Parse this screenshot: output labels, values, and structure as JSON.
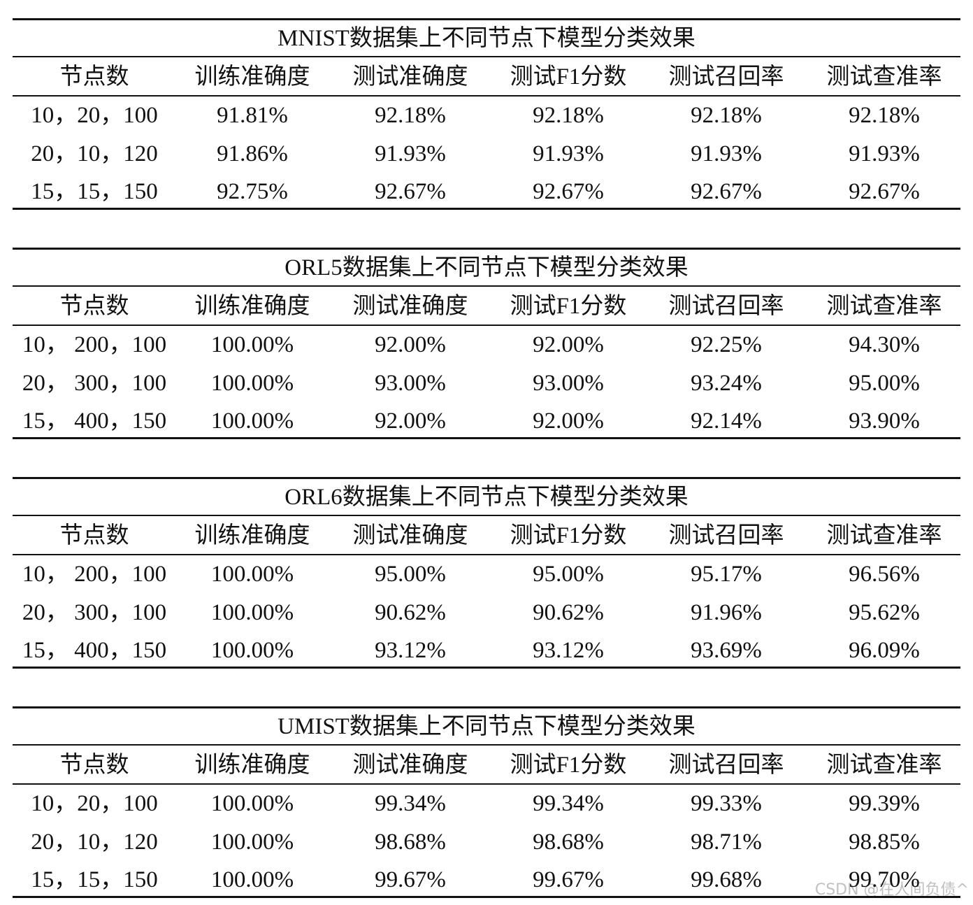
{
  "tables": [
    {
      "title": "MNIST数据集上不同节点下模型分类效果",
      "header": [
        "节点数",
        "训练准确度",
        "测试准确度",
        "测试F1分数",
        "测试召回率",
        "测试查准率"
      ],
      "rows": [
        [
          "10，20，100",
          "91.81%",
          "92.18%",
          "92.18%",
          "92.18%",
          "92.18%"
        ],
        [
          "20，10，120",
          "91.86%",
          "91.93%",
          "91.93%",
          "91.93%",
          "91.93%"
        ],
        [
          "15，15，150",
          "92.75%",
          "92.67%",
          "92.67%",
          "92.67%",
          "92.67%"
        ]
      ]
    },
    {
      "title": "ORL5数据集上不同节点下模型分类效果",
      "header": [
        "节点数",
        "训练准确度",
        "测试准确度",
        "测试F1分数",
        "测试召回率",
        "测试查准率"
      ],
      "rows": [
        [
          "10， 200，100",
          "100.00%",
          "92.00%",
          "92.00%",
          "92.25%",
          "94.30%"
        ],
        [
          "20， 300，100",
          "100.00%",
          "93.00%",
          "93.00%",
          "93.24%",
          "95.00%"
        ],
        [
          "15， 400，150",
          "100.00%",
          "92.00%",
          "92.00%",
          "92.14%",
          "93.90%"
        ]
      ]
    },
    {
      "title": "ORL6数据集上不同节点下模型分类效果",
      "header": [
        "节点数",
        "训练准确度",
        "测试准确度",
        "测试F1分数",
        "测试召回率",
        "测试查准率"
      ],
      "rows": [
        [
          "10， 200，100",
          "100.00%",
          "95.00%",
          "95.00%",
          "95.17%",
          "96.56%"
        ],
        [
          "20， 300，100",
          "100.00%",
          "90.62%",
          "90.62%",
          "91.96%",
          "95.62%"
        ],
        [
          "15， 400，150",
          "100.00%",
          "93.12%",
          "93.12%",
          "93.69%",
          "96.09%"
        ]
      ]
    },
    {
      "title": "UMIST数据集上不同节点下模型分类效果",
      "header": [
        "节点数",
        "训练准确度",
        "测试准确度",
        "测试F1分数",
        "测试召回率",
        "测试查准率"
      ],
      "rows": [
        [
          "10，20，100",
          "100.00%",
          "99.34%",
          "99.34%",
          "99.33%",
          "99.39%"
        ],
        [
          "20，10，120",
          "100.00%",
          "98.68%",
          "98.68%",
          "98.71%",
          "98.85%"
        ],
        [
          "15，15，150",
          "100.00%",
          "99.67%",
          "99.67%",
          "99.68%",
          "99.70%"
        ]
      ]
    }
  ],
  "watermark": "CSDN @在人间负债^"
}
